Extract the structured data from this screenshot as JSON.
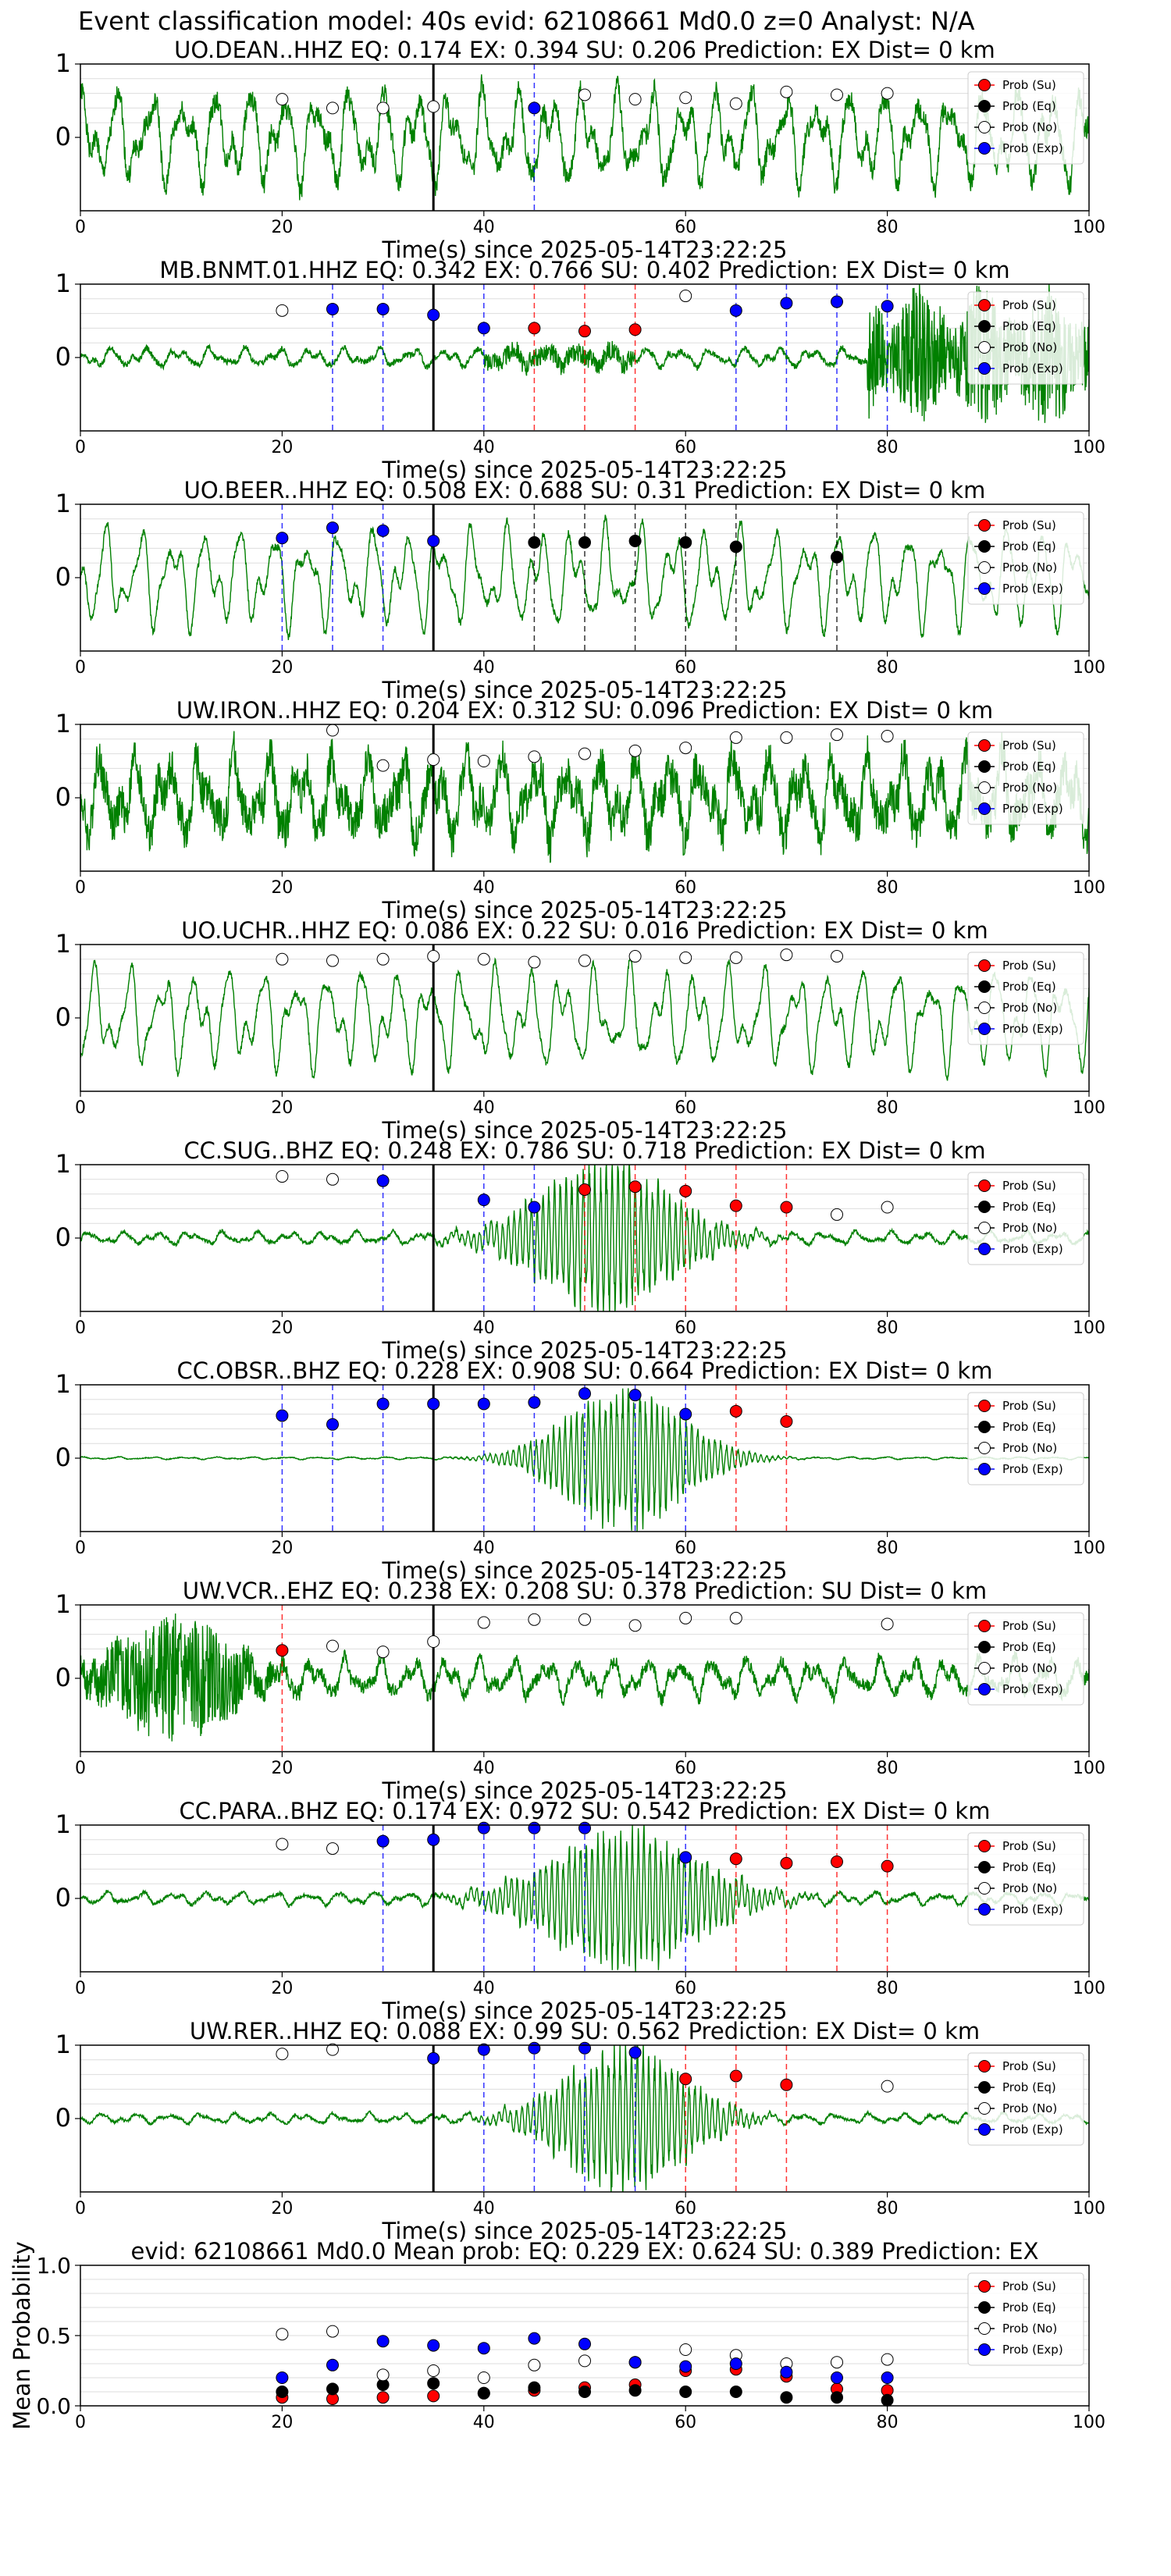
{
  "figure_title": "Event classification model: 40s evid: 62108661 Md0.0 z=0 Analyst: N/A",
  "legend_labels": [
    "Prob (Su)",
    "Prob (Eq)",
    "Prob (No)",
    "Prob (Exp)"
  ],
  "colors": {
    "waveform": "#008000",
    "su": "#ff0000",
    "eq": "#000000",
    "no": "#ffffff",
    "exp": "#0000ff",
    "axis": "#000000",
    "grid": "#dddddd"
  },
  "chart_data": [
    {
      "type": "line",
      "title": "UO.DEAN..HHZ   EQ: 0.174  EX: 0.394  SU: 0.206   Prediction: EX    Dist= 0 km",
      "xlabel": "Time(s) since 2025-05-14T23:22:25",
      "xlim": [
        0,
        100
      ],
      "ylim": [
        -1,
        1
      ],
      "xticks": [
        "0",
        "20",
        "40",
        "60",
        "80",
        "100"
      ],
      "yticks": [
        "0",
        "1"
      ],
      "origin_line": 35,
      "waveform": {
        "style": "normal",
        "seed": 1
      },
      "windows": [
        {
          "t": 20,
          "p": 0.52,
          "c": "no"
        },
        {
          "t": 25,
          "p": 0.4,
          "c": "no"
        },
        {
          "t": 30,
          "p": 0.4,
          "c": "no"
        },
        {
          "t": 35,
          "p": 0.42,
          "c": "no"
        },
        {
          "t": 45,
          "p": 0.4,
          "c": "exp"
        },
        {
          "t": 50,
          "p": 0.58,
          "c": "no"
        },
        {
          "t": 55,
          "p": 0.52,
          "c": "no"
        },
        {
          "t": 60,
          "p": 0.54,
          "c": "no"
        },
        {
          "t": 65,
          "p": 0.46,
          "c": "no"
        },
        {
          "t": 70,
          "p": 0.62,
          "c": "no"
        },
        {
          "t": 75,
          "p": 0.58,
          "c": "no"
        },
        {
          "t": 80,
          "p": 0.6,
          "c": "no"
        }
      ]
    },
    {
      "type": "line",
      "title": "MB.BNMT.01.HHZ   EQ: 0.342  EX: 0.766  SU: 0.402   Prediction: EX    Dist= 0 km",
      "xlabel": "Time(s) since 2025-05-14T23:22:25",
      "xlim": [
        0,
        100
      ],
      "ylim": [
        -1,
        1
      ],
      "xticks": [
        "0",
        "20",
        "40",
        "60",
        "80",
        "100"
      ],
      "yticks": [
        "0",
        "1"
      ],
      "origin_line": 35,
      "waveform": {
        "style": "quiet_end",
        "seed": 2
      },
      "windows": [
        {
          "t": 20,
          "p": 0.64,
          "c": "no"
        },
        {
          "t": 25,
          "p": 0.66,
          "c": "exp"
        },
        {
          "t": 30,
          "p": 0.66,
          "c": "exp"
        },
        {
          "t": 35,
          "p": 0.58,
          "c": "exp"
        },
        {
          "t": 40,
          "p": 0.4,
          "c": "exp"
        },
        {
          "t": 45,
          "p": 0.4,
          "c": "su"
        },
        {
          "t": 50,
          "p": 0.36,
          "c": "su"
        },
        {
          "t": 55,
          "p": 0.38,
          "c": "su"
        },
        {
          "t": 60,
          "p": 0.84,
          "c": "no"
        },
        {
          "t": 65,
          "p": 0.64,
          "c": "exp"
        },
        {
          "t": 70,
          "p": 0.74,
          "c": "exp"
        },
        {
          "t": 75,
          "p": 0.76,
          "c": "exp"
        },
        {
          "t": 80,
          "p": 0.7,
          "c": "exp"
        }
      ]
    },
    {
      "type": "line",
      "title": "UO.BEER..HHZ   EQ: 0.508  EX: 0.688  SU: 0.31   Prediction: EX    Dist= 0 km",
      "xlabel": "Time(s) since 2025-05-14T23:22:25",
      "xlim": [
        0,
        100
      ],
      "ylim": [
        -1,
        1
      ],
      "xticks": [
        "0",
        "20",
        "40",
        "60",
        "80",
        "100"
      ],
      "yticks": [
        "0",
        "1"
      ],
      "origin_line": 35,
      "waveform": {
        "style": "normal_smooth",
        "seed": 3
      },
      "windows": [
        {
          "t": 20,
          "p": 0.54,
          "c": "exp"
        },
        {
          "t": 25,
          "p": 0.68,
          "c": "exp"
        },
        {
          "t": 30,
          "p": 0.64,
          "c": "exp"
        },
        {
          "t": 35,
          "p": 0.5,
          "c": "exp"
        },
        {
          "t": 45,
          "p": 0.48,
          "c": "eq"
        },
        {
          "t": 50,
          "p": 0.48,
          "c": "eq"
        },
        {
          "t": 55,
          "p": 0.5,
          "c": "eq"
        },
        {
          "t": 60,
          "p": 0.48,
          "c": "eq"
        },
        {
          "t": 65,
          "p": 0.42,
          "c": "eq"
        },
        {
          "t": 75,
          "p": 0.28,
          "c": "eq"
        }
      ]
    },
    {
      "type": "line",
      "title": "UW.IRON..HHZ   EQ: 0.204  EX: 0.312  SU: 0.096   Prediction: EX    Dist= 0 km",
      "xlabel": "Time(s) since 2025-05-14T23:22:25",
      "xlim": [
        0,
        100
      ],
      "ylim": [
        -1,
        1
      ],
      "xticks": [
        "0",
        "20",
        "40",
        "60",
        "80",
        "100"
      ],
      "yticks": [
        "0",
        "1"
      ],
      "origin_line": 35,
      "waveform": {
        "style": "noisy",
        "seed": 4
      },
      "windows": [
        {
          "t": 25,
          "p": 0.92,
          "c": "no"
        },
        {
          "t": 30,
          "p": 0.44,
          "c": "no"
        },
        {
          "t": 35,
          "p": 0.52,
          "c": "no"
        },
        {
          "t": 40,
          "p": 0.5,
          "c": "no"
        },
        {
          "t": 45,
          "p": 0.56,
          "c": "no"
        },
        {
          "t": 50,
          "p": 0.6,
          "c": "no"
        },
        {
          "t": 55,
          "p": 0.64,
          "c": "no"
        },
        {
          "t": 60,
          "p": 0.68,
          "c": "no"
        },
        {
          "t": 65,
          "p": 0.82,
          "c": "no"
        },
        {
          "t": 70,
          "p": 0.82,
          "c": "no"
        },
        {
          "t": 75,
          "p": 0.86,
          "c": "no"
        },
        {
          "t": 80,
          "p": 0.84,
          "c": "no"
        }
      ]
    },
    {
      "type": "line",
      "title": "UO.UCHR..HHZ   EQ: 0.086  EX: 0.22  SU: 0.016   Prediction: EX    Dist= 0 km",
      "xlabel": "Time(s) since 2025-05-14T23:22:25",
      "xlim": [
        0,
        100
      ],
      "ylim": [
        -1,
        1
      ],
      "xticks": [
        "0",
        "20",
        "40",
        "60",
        "80",
        "100"
      ],
      "yticks": [
        "0",
        "1"
      ],
      "origin_line": 35,
      "waveform": {
        "style": "normal_smooth",
        "seed": 5
      },
      "windows": [
        {
          "t": 20,
          "p": 0.8,
          "c": "no"
        },
        {
          "t": 25,
          "p": 0.78,
          "c": "no"
        },
        {
          "t": 30,
          "p": 0.8,
          "c": "no"
        },
        {
          "t": 35,
          "p": 0.84,
          "c": "no"
        },
        {
          "t": 40,
          "p": 0.8,
          "c": "no"
        },
        {
          "t": 45,
          "p": 0.76,
          "c": "no"
        },
        {
          "t": 50,
          "p": 0.78,
          "c": "no"
        },
        {
          "t": 55,
          "p": 0.84,
          "c": "no"
        },
        {
          "t": 60,
          "p": 0.82,
          "c": "no"
        },
        {
          "t": 65,
          "p": 0.82,
          "c": "no"
        },
        {
          "t": 70,
          "p": 0.86,
          "c": "no"
        },
        {
          "t": 75,
          "p": 0.84,
          "c": "no"
        }
      ]
    },
    {
      "type": "line",
      "title": "CC.SUG..BHZ   EQ: 0.248  EX: 0.786  SU: 0.718   Prediction: EX    Dist= 0 km",
      "xlabel": "Time(s) since 2025-05-14T23:22:25",
      "xlim": [
        0,
        100
      ],
      "ylim": [
        -1,
        1
      ],
      "xticks": [
        "0",
        "20",
        "40",
        "60",
        "80",
        "100"
      ],
      "yticks": [
        "0",
        "1"
      ],
      "origin_line": 35,
      "waveform": {
        "style": "burst",
        "seed": 6,
        "center": 52,
        "width": 9,
        "amp": 1.0,
        "base": 0.05
      },
      "windows": [
        {
          "t": 20,
          "p": 0.84,
          "c": "no"
        },
        {
          "t": 25,
          "p": 0.8,
          "c": "no"
        },
        {
          "t": 30,
          "p": 0.78,
          "c": "exp"
        },
        {
          "t": 40,
          "p": 0.52,
          "c": "exp"
        },
        {
          "t": 45,
          "p": 0.42,
          "c": "exp"
        },
        {
          "t": 50,
          "p": 0.66,
          "c": "su"
        },
        {
          "t": 55,
          "p": 0.7,
          "c": "su"
        },
        {
          "t": 60,
          "p": 0.64,
          "c": "su"
        },
        {
          "t": 65,
          "p": 0.44,
          "c": "su"
        },
        {
          "t": 70,
          "p": 0.42,
          "c": "su"
        },
        {
          "t": 75,
          "p": 0.32,
          "c": "no"
        },
        {
          "t": 80,
          "p": 0.42,
          "c": "no"
        }
      ]
    },
    {
      "type": "line",
      "title": "CC.OBSR..BHZ   EQ: 0.228  EX: 0.908  SU: 0.664   Prediction: EX    Dist= 0 km",
      "xlabel": "Time(s) since 2025-05-14T23:22:25",
      "xlim": [
        0,
        100
      ],
      "ylim": [
        -1,
        1
      ],
      "xticks": [
        "0",
        "20",
        "40",
        "60",
        "80",
        "100"
      ],
      "yticks": [
        "0",
        "1"
      ],
      "origin_line": 35,
      "waveform": {
        "style": "burst",
        "seed": 7,
        "center": 54,
        "width": 8,
        "amp": 0.95,
        "base": 0.01
      },
      "windows": [
        {
          "t": 20,
          "p": 0.58,
          "c": "exp"
        },
        {
          "t": 25,
          "p": 0.46,
          "c": "exp"
        },
        {
          "t": 30,
          "p": 0.74,
          "c": "exp"
        },
        {
          "t": 35,
          "p": 0.74,
          "c": "exp"
        },
        {
          "t": 40,
          "p": 0.74,
          "c": "exp"
        },
        {
          "t": 45,
          "p": 0.76,
          "c": "exp"
        },
        {
          "t": 50,
          "p": 0.88,
          "c": "exp"
        },
        {
          "t": 55,
          "p": 0.86,
          "c": "exp"
        },
        {
          "t": 60,
          "p": 0.6,
          "c": "exp"
        },
        {
          "t": 65,
          "p": 0.64,
          "c": "su"
        },
        {
          "t": 70,
          "p": 0.5,
          "c": "su"
        }
      ]
    },
    {
      "type": "line",
      "title": "UW.VCR..EHZ   EQ: 0.238  EX: 0.208  SU: 0.378   Prediction: SU    Dist= 0 km",
      "xlabel": "Time(s) since 2025-05-14T23:22:25",
      "xlim": [
        0,
        100
      ],
      "ylim": [
        -1,
        1
      ],
      "xticks": [
        "0",
        "20",
        "40",
        "60",
        "80",
        "100"
      ],
      "yticks": [
        "0",
        "1"
      ],
      "origin_line": 35,
      "waveform": {
        "style": "early_burst",
        "seed": 8
      },
      "windows": [
        {
          "t": 20,
          "p": 0.38,
          "c": "su"
        },
        {
          "t": 25,
          "p": 0.44,
          "c": "no"
        },
        {
          "t": 30,
          "p": 0.36,
          "c": "no"
        },
        {
          "t": 35,
          "p": 0.5,
          "c": "no"
        },
        {
          "t": 40,
          "p": 0.76,
          "c": "no"
        },
        {
          "t": 45,
          "p": 0.8,
          "c": "no"
        },
        {
          "t": 50,
          "p": 0.8,
          "c": "no"
        },
        {
          "t": 55,
          "p": 0.72,
          "c": "no"
        },
        {
          "t": 60,
          "p": 0.82,
          "c": "no"
        },
        {
          "t": 65,
          "p": 0.82,
          "c": "no"
        },
        {
          "t": 80,
          "p": 0.74,
          "c": "no"
        }
      ]
    },
    {
      "type": "line",
      "title": "CC.PARA..BHZ   EQ: 0.174  EX: 0.972  SU: 0.542   Prediction: EX    Dist= 0 km",
      "xlabel": "Time(s) since 2025-05-14T23:22:25",
      "xlim": [
        0,
        100
      ],
      "ylim": [
        -1,
        1
      ],
      "xticks": [
        "0",
        "20",
        "40",
        "60",
        "80",
        "100"
      ],
      "yticks": [
        "0",
        "1"
      ],
      "origin_line": 35,
      "waveform": {
        "style": "burst",
        "seed": 9,
        "center": 54,
        "width": 10,
        "amp": 0.95,
        "base": 0.05
      },
      "windows": [
        {
          "t": 20,
          "p": 0.74,
          "c": "no"
        },
        {
          "t": 25,
          "p": 0.68,
          "c": "no"
        },
        {
          "t": 30,
          "p": 0.78,
          "c": "exp"
        },
        {
          "t": 35,
          "p": 0.8,
          "c": "exp"
        },
        {
          "t": 40,
          "p": 0.96,
          "c": "exp"
        },
        {
          "t": 45,
          "p": 0.96,
          "c": "exp"
        },
        {
          "t": 50,
          "p": 0.96,
          "c": "exp"
        },
        {
          "t": 60,
          "p": 0.56,
          "c": "exp"
        },
        {
          "t": 65,
          "p": 0.54,
          "c": "su"
        },
        {
          "t": 70,
          "p": 0.48,
          "c": "su"
        },
        {
          "t": 75,
          "p": 0.5,
          "c": "su"
        },
        {
          "t": 80,
          "p": 0.44,
          "c": "su"
        }
      ]
    },
    {
      "type": "line",
      "title": "UW.RER..HHZ   EQ: 0.088  EX: 0.99  SU: 0.562   Prediction: EX    Dist= 0 km",
      "xlabel": "Time(s) since 2025-05-14T23:22:25",
      "xlim": [
        0,
        100
      ],
      "ylim": [
        -1,
        1
      ],
      "xticks": [
        "0",
        "20",
        "40",
        "60",
        "80",
        "100"
      ],
      "yticks": [
        "0",
        "1"
      ],
      "origin_line": 35,
      "waveform": {
        "style": "burst",
        "seed": 10,
        "center": 54,
        "width": 8,
        "amp": 1.0,
        "base": 0.04
      },
      "windows": [
        {
          "t": 20,
          "p": 0.88,
          "c": "no"
        },
        {
          "t": 25,
          "p": 0.94,
          "c": "no"
        },
        {
          "t": 35,
          "p": 0.82,
          "c": "exp"
        },
        {
          "t": 40,
          "p": 0.94,
          "c": "exp"
        },
        {
          "t": 45,
          "p": 0.96,
          "c": "exp"
        },
        {
          "t": 50,
          "p": 0.96,
          "c": "exp"
        },
        {
          "t": 55,
          "p": 0.9,
          "c": "exp"
        },
        {
          "t": 60,
          "p": 0.54,
          "c": "su"
        },
        {
          "t": 65,
          "p": 0.58,
          "c": "su"
        },
        {
          "t": 70,
          "p": 0.46,
          "c": "su"
        },
        {
          "t": 80,
          "p": 0.44,
          "c": "no"
        }
      ]
    },
    {
      "type": "scatter",
      "title": "evid: 62108661  Md0.0   Mean prob:   EQ: 0.229  EX: 0.624  SU: 0.389   Prediction: EX",
      "ylabel": "Mean Probability",
      "xlim": [
        0,
        100
      ],
      "ylim": [
        0,
        1
      ],
      "xticks": [
        "0",
        "20",
        "40",
        "60",
        "80",
        "100"
      ],
      "yticks": [
        "0.0",
        "0.5",
        "1.0"
      ],
      "x": [
        20,
        25,
        30,
        35,
        40,
        45,
        50,
        55,
        60,
        65,
        70,
        75,
        80
      ],
      "series": [
        {
          "key": "su",
          "values": [
            0.06,
            0.05,
            0.06,
            0.07,
            0.09,
            0.11,
            0.13,
            0.15,
            0.25,
            0.26,
            0.21,
            0.12,
            0.11
          ]
        },
        {
          "key": "eq",
          "values": [
            0.1,
            0.12,
            0.15,
            0.16,
            0.09,
            0.13,
            0.1,
            0.11,
            0.1,
            0.1,
            0.06,
            0.06,
            0.04
          ]
        },
        {
          "key": "no",
          "values": [
            0.51,
            0.53,
            0.22,
            0.25,
            0.2,
            0.29,
            0.32,
            0.31,
            0.4,
            0.36,
            0.3,
            0.31,
            0.33
          ]
        },
        {
          "key": "exp",
          "values": [
            0.2,
            0.29,
            0.46,
            0.43,
            0.41,
            0.48,
            0.44,
            0.31,
            0.28,
            0.3,
            0.24,
            0.2,
            0.2
          ]
        }
      ]
    }
  ]
}
